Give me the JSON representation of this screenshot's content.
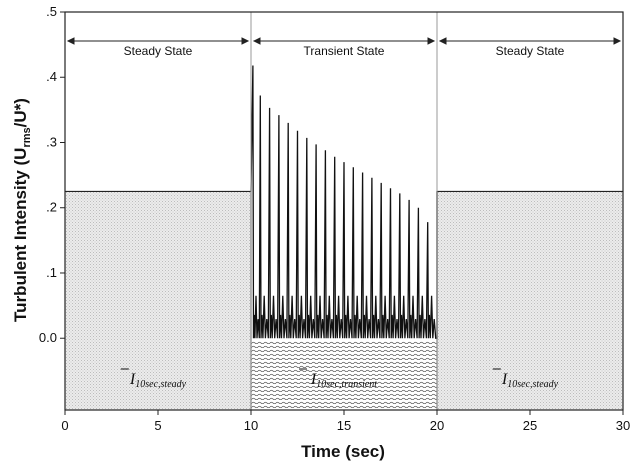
{
  "chart_data": {
    "type": "line",
    "xlabel": "Time (sec)",
    "ylabel_main": "Turbulent Intensity (U",
    "ylabel_sub": "rms",
    "ylabel_tail": "/U*)",
    "x_ticks": [
      "0",
      "5",
      "10",
      "15",
      "20",
      "25",
      "30"
    ],
    "x_tick_values": [
      0,
      5,
      10,
      15,
      20,
      25,
      30
    ],
    "y_ticks": [
      "0.0",
      ".1",
      ".2",
      ".3",
      ".4",
      ".5"
    ],
    "y_tick_values": [
      0.0,
      0.1,
      0.2,
      0.3,
      0.4,
      0.5
    ],
    "xlim": [
      0,
      30
    ],
    "ylim": [
      -0.11,
      0.5
    ],
    "grid": false,
    "regions": [
      {
        "label": "Steady State",
        "x_start": 0,
        "x_end": 10
      },
      {
        "label": "Transient State",
        "x_start": 10,
        "x_end": 20
      },
      {
        "label": "Steady State",
        "x_start": 20,
        "x_end": 30
      }
    ],
    "steady_level": 0.225,
    "transient_band": [
      -0.11,
      -0.005
    ],
    "transient_peaks": {
      "x": [
        10.1,
        10.5,
        11.0,
        11.5,
        12.0,
        12.5,
        13.0,
        13.5,
        14.0,
        14.5,
        15.0,
        15.5,
        16.0,
        16.5,
        17.0,
        17.5,
        18.0,
        18.5,
        19.0,
        19.5
      ],
      "y": [
        0.418,
        0.372,
        0.353,
        0.342,
        0.33,
        0.318,
        0.307,
        0.297,
        0.288,
        0.278,
        0.27,
        0.262,
        0.254,
        0.246,
        0.238,
        0.23,
        0.222,
        0.212,
        0.2,
        0.178
      ]
    },
    "annotations": [
      {
        "base": "I",
        "sub": "10sec,steady"
      },
      {
        "base": "I",
        "sub": "10sec,transient"
      },
      {
        "base": "I",
        "sub": "10sec,steady"
      }
    ]
  }
}
